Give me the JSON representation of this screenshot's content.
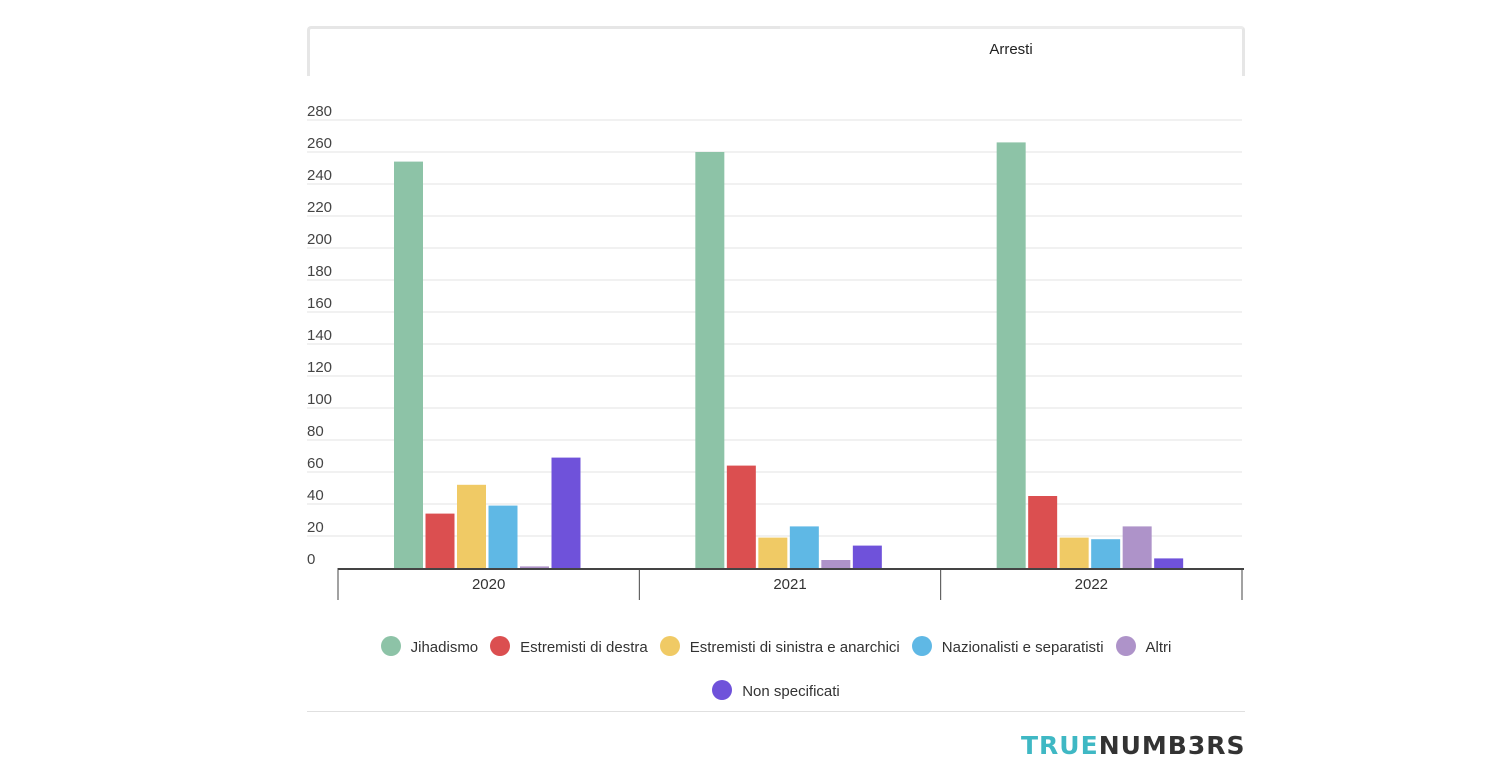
{
  "tab": {
    "label": "Arresti"
  },
  "chart_data": {
    "type": "bar",
    "categories": [
      "2020",
      "2021",
      "2022"
    ],
    "series": [
      {
        "name": "Jihadismo",
        "color": "#8dc3a7",
        "values": [
          254,
          260,
          266
        ]
      },
      {
        "name": "Estremisti di destra",
        "color": "#db4f50",
        "values": [
          34,
          64,
          45
        ]
      },
      {
        "name": "Estremisti di sinistra e anarchici",
        "color": "#f0ca65",
        "values": [
          52,
          19,
          19
        ]
      },
      {
        "name": "Nazionalisti e separatisti",
        "color": "#5fb8e5",
        "values": [
          39,
          26,
          18
        ]
      },
      {
        "name": "Altri",
        "color": "#ae93c9",
        "values": [
          1,
          5,
          26
        ]
      },
      {
        "name": "Non specificati",
        "color": "#6f52da",
        "values": [
          69,
          14,
          6
        ]
      }
    ],
    "yticks": [
      0,
      20,
      40,
      60,
      80,
      100,
      120,
      140,
      160,
      180,
      200,
      220,
      240,
      260,
      280
    ],
    "ylim": [
      0,
      280
    ],
    "xlabel": "",
    "ylabel": "",
    "grid": true,
    "legend_position": "bottom"
  },
  "brand": {
    "logo_part1": "TRUE",
    "logo_part2": "NUMB3RS"
  }
}
